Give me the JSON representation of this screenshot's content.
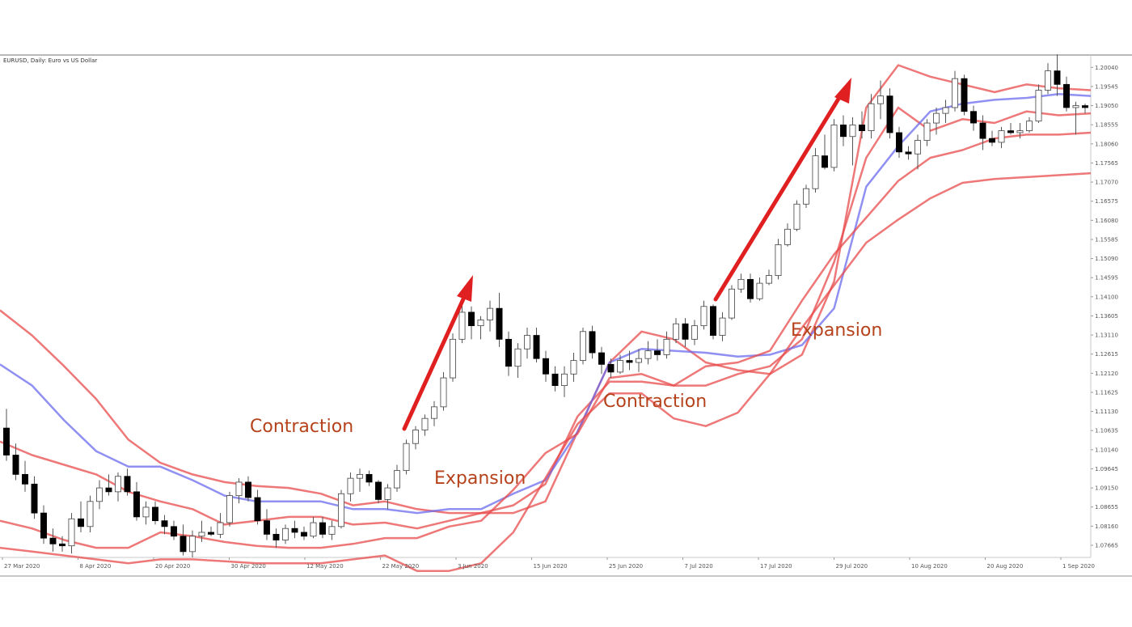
{
  "colors": {
    "outer_band": "#e8494b",
    "middle_band": "#6b6bef",
    "bull_fill": "#ffffff",
    "bear_fill": "#000000",
    "wick": "#555555",
    "arrow": "#e02020",
    "annotation": "#b5421b",
    "frame": "#b9b9b9"
  },
  "chart_data": {
    "type": "candlestick",
    "title": "EURUSD, Daily:  Euro vs US Dollar",
    "x_tick_labels": [
      "27 Mar 2020",
      "8 Apr 2020",
      "20 Apr 2020",
      "30 Apr 2020",
      "12 May 2020",
      "22 May 2020",
      "3 Jun 2020",
      "15 Jun 2020",
      "25 Jun 2020",
      "7 Jul 2020",
      "17 Jul 2020",
      "29 Jul 2020",
      "10 Aug 2020",
      "20 Aug 2020",
      "1 Sep 2020"
    ],
    "y_tick_labels": [
      "1.20040",
      "1.19545",
      "1.19050",
      "1.18555",
      "1.18060",
      "1.17565",
      "1.17070",
      "1.16575",
      "1.16080",
      "1.15585",
      "1.15090",
      "1.14595",
      "1.14100",
      "1.13605",
      "1.13110",
      "1.12615",
      "1.12120",
      "1.11625",
      "1.11130",
      "1.10635",
      "1.10140",
      "1.09645",
      "1.09150",
      "1.08655",
      "1.08160",
      "1.07665"
    ],
    "ylim": [
      1.0735,
      1.2034
    ],
    "grid": false,
    "candles_ohlc": [
      [
        1.107,
        1.112,
        1.0985,
        1.1
      ],
      [
        1.1,
        1.103,
        1.0935,
        1.095
      ],
      [
        1.095,
        1.0985,
        1.0905,
        1.0925
      ],
      [
        1.0925,
        1.0945,
        1.0835,
        1.085
      ],
      [
        1.085,
        1.087,
        1.077,
        1.0785
      ],
      [
        1.0785,
        1.081,
        1.075,
        1.077
      ],
      [
        1.077,
        1.079,
        1.075,
        1.0765
      ],
      [
        1.0765,
        1.085,
        1.0745,
        1.0835
      ],
      [
        1.0835,
        1.088,
        1.08,
        1.0815
      ],
      [
        1.0815,
        1.0895,
        1.08,
        1.088
      ],
      [
        1.088,
        1.0935,
        1.086,
        1.0915
      ],
      [
        1.0915,
        1.095,
        1.0895,
        1.0905
      ],
      [
        1.0905,
        1.0955,
        1.088,
        1.0945
      ],
      [
        1.0945,
        1.0965,
        1.0895,
        1.0905
      ],
      [
        1.0905,
        1.093,
        1.083,
        1.084
      ],
      [
        1.084,
        1.088,
        1.082,
        1.0865
      ],
      [
        1.0865,
        1.088,
        1.082,
        1.083
      ],
      [
        1.083,
        1.0845,
        1.0795,
        1.0815
      ],
      [
        1.0815,
        1.083,
        1.078,
        1.079
      ],
      [
        1.079,
        1.082,
        1.074,
        1.075
      ],
      [
        1.075,
        1.0805,
        1.0735,
        1.079
      ],
      [
        1.079,
        1.083,
        1.0775,
        1.08
      ],
      [
        1.08,
        1.0815,
        1.079,
        1.0795
      ],
      [
        1.0795,
        1.085,
        1.0785,
        1.0825
      ],
      [
        1.0825,
        1.0905,
        1.0815,
        1.0895
      ],
      [
        1.0895,
        1.094,
        1.0875,
        1.093
      ],
      [
        1.093,
        1.0945,
        1.088,
        1.089
      ],
      [
        1.089,
        1.091,
        1.082,
        1.083
      ],
      [
        1.083,
        1.086,
        1.078,
        1.0795
      ],
      [
        1.0795,
        1.081,
        1.076,
        1.078
      ],
      [
        1.078,
        1.082,
        1.077,
        1.081
      ],
      [
        1.081,
        1.083,
        1.0785,
        1.08
      ],
      [
        1.08,
        1.0815,
        1.078,
        1.079
      ],
      [
        1.079,
        1.084,
        1.0785,
        1.0825
      ],
      [
        1.0825,
        1.084,
        1.0785,
        1.0795
      ],
      [
        1.0795,
        1.083,
        1.078,
        1.0815
      ],
      [
        1.0815,
        1.091,
        1.081,
        1.09
      ],
      [
        1.09,
        1.0955,
        1.088,
        1.094
      ],
      [
        1.094,
        1.0965,
        1.0905,
        1.095
      ],
      [
        1.095,
        1.096,
        1.092,
        1.093
      ],
      [
        1.093,
        1.0935,
        1.0875,
        1.0885
      ],
      [
        1.0885,
        1.0925,
        1.086,
        1.0915
      ],
      [
        1.0915,
        1.0975,
        1.0905,
        1.096
      ],
      [
        1.096,
        1.104,
        1.095,
        1.103
      ],
      [
        1.103,
        1.1075,
        1.1015,
        1.1065
      ],
      [
        1.1065,
        1.1105,
        1.105,
        1.1095
      ],
      [
        1.1095,
        1.114,
        1.1075,
        1.1125
      ],
      [
        1.1125,
        1.1215,
        1.1115,
        1.12
      ],
      [
        1.12,
        1.1315,
        1.119,
        1.13
      ],
      [
        1.13,
        1.1395,
        1.129,
        1.137
      ],
      [
        1.137,
        1.1385,
        1.13,
        1.1335
      ],
      [
        1.1335,
        1.136,
        1.13,
        1.135
      ],
      [
        1.135,
        1.14,
        1.132,
        1.138
      ],
      [
        1.138,
        1.142,
        1.128,
        1.13
      ],
      [
        1.13,
        1.132,
        1.1205,
        1.123
      ],
      [
        1.123,
        1.129,
        1.12,
        1.1275
      ],
      [
        1.1275,
        1.133,
        1.125,
        1.131
      ],
      [
        1.131,
        1.133,
        1.124,
        1.125
      ],
      [
        1.125,
        1.127,
        1.119,
        1.121
      ],
      [
        1.121,
        1.123,
        1.1165,
        1.118
      ],
      [
        1.118,
        1.123,
        1.115,
        1.121
      ],
      [
        1.121,
        1.1265,
        1.119,
        1.1245
      ],
      [
        1.1245,
        1.133,
        1.1235,
        1.132
      ],
      [
        1.132,
        1.1335,
        1.125,
        1.1265
      ],
      [
        1.1265,
        1.128,
        1.121,
        1.1235
      ],
      [
        1.1235,
        1.125,
        1.12,
        1.1215
      ],
      [
        1.1215,
        1.126,
        1.121,
        1.1245
      ],
      [
        1.1245,
        1.127,
        1.122,
        1.124
      ],
      [
        1.124,
        1.1275,
        1.1215,
        1.125
      ],
      [
        1.125,
        1.1295,
        1.1235,
        1.127
      ],
      [
        1.127,
        1.13,
        1.1245,
        1.126
      ],
      [
        1.126,
        1.132,
        1.125,
        1.13
      ],
      [
        1.13,
        1.1355,
        1.129,
        1.134
      ],
      [
        1.134,
        1.1355,
        1.128,
        1.13
      ],
      [
        1.13,
        1.135,
        1.1285,
        1.1335
      ],
      [
        1.1335,
        1.14,
        1.1325,
        1.1385
      ],
      [
        1.1385,
        1.139,
        1.13,
        1.131
      ],
      [
        1.131,
        1.137,
        1.1295,
        1.1355
      ],
      [
        1.1355,
        1.144,
        1.135,
        1.143
      ],
      [
        1.143,
        1.147,
        1.142,
        1.1455
      ],
      [
        1.1455,
        1.147,
        1.1395,
        1.1405
      ],
      [
        1.1405,
        1.146,
        1.14,
        1.1445
      ],
      [
        1.1445,
        1.148,
        1.144,
        1.1465
      ],
      [
        1.1465,
        1.156,
        1.1455,
        1.1545
      ],
      [
        1.1545,
        1.16,
        1.154,
        1.1585
      ],
      [
        1.1585,
        1.166,
        1.158,
        1.165
      ],
      [
        1.165,
        1.17,
        1.164,
        1.169
      ],
      [
        1.169,
        1.1795,
        1.168,
        1.1775
      ],
      [
        1.1775,
        1.183,
        1.174,
        1.1745
      ],
      [
        1.1745,
        1.187,
        1.1735,
        1.1855
      ],
      [
        1.1855,
        1.188,
        1.18,
        1.1825
      ],
      [
        1.1825,
        1.1875,
        1.175,
        1.1855
      ],
      [
        1.1855,
        1.189,
        1.182,
        1.184
      ],
      [
        1.184,
        1.1935,
        1.182,
        1.191
      ],
      [
        1.191,
        1.197,
        1.187,
        1.193
      ],
      [
        1.193,
        1.195,
        1.182,
        1.1835
      ],
      [
        1.1835,
        1.185,
        1.177,
        1.1785
      ],
      [
        1.1785,
        1.18,
        1.1765,
        1.178
      ],
      [
        1.178,
        1.183,
        1.174,
        1.1815
      ],
      [
        1.1815,
        1.187,
        1.18,
        1.186
      ],
      [
        1.186,
        1.19,
        1.183,
        1.1885
      ],
      [
        1.1885,
        1.192,
        1.186,
        1.19
      ],
      [
        1.19,
        1.1995,
        1.189,
        1.1975
      ],
      [
        1.1975,
        1.1985,
        1.188,
        1.189
      ],
      [
        1.189,
        1.1905,
        1.184,
        1.186
      ],
      [
        1.186,
        1.188,
        1.179,
        1.182
      ],
      [
        1.182,
        1.184,
        1.18,
        1.181
      ],
      [
        1.181,
        1.185,
        1.1795,
        1.184
      ],
      [
        1.184,
        1.186,
        1.183,
        1.1835
      ],
      [
        1.1835,
        1.186,
        1.182,
        1.184
      ],
      [
        1.184,
        1.1875,
        1.1835,
        1.1865
      ],
      [
        1.1865,
        1.196,
        1.186,
        1.1945
      ],
      [
        1.1945,
        1.2015,
        1.1935,
        1.1995
      ],
      [
        1.1995,
        1.207,
        1.193,
        1.196
      ],
      [
        1.196,
        1.198,
        1.189,
        1.19
      ],
      [
        1.19,
        1.1915,
        1.183,
        1.1905
      ],
      [
        1.1905,
        1.191,
        1.1885,
        1.19
      ]
    ],
    "series": [
      {
        "name": "",
        "role": "upper_outer_band",
        "values": [
          1.1375,
          1.131,
          1.123,
          1.1145,
          1.104,
          1.098,
          1.095,
          1.093,
          1.092,
          1.0915,
          1.09,
          1.087,
          1.088,
          1.086,
          1.085,
          1.085,
          1.085,
          1.088,
          1.106,
          1.124,
          1.132,
          1.13,
          1.124,
          1.122,
          1.121,
          1.126,
          1.145,
          1.19,
          1.201,
          1.198,
          1.196,
          1.194,
          1.196,
          1.195,
          1.1945
        ]
      },
      {
        "name": "",
        "role": "upper_inner_band",
        "values": [
          1.1035,
          1.1,
          1.0975,
          1.095,
          1.0905,
          1.088,
          1.086,
          1.082,
          1.083,
          1.084,
          1.084,
          1.082,
          1.0825,
          1.081,
          1.083,
          1.085,
          1.087,
          1.0925,
          1.11,
          1.119,
          1.119,
          1.118,
          1.118,
          1.121,
          1.123,
          1.13,
          1.15,
          1.177,
          1.19,
          1.184,
          1.187,
          1.186,
          1.189,
          1.188,
          1.1885
        ]
      },
      {
        "name": "",
        "role": "middle_band",
        "values": [
          1.1235,
          1.118,
          1.109,
          1.101,
          1.097,
          1.097,
          1.0935,
          1.0895,
          1.088,
          1.088,
          1.088,
          1.086,
          1.086,
          1.085,
          1.086,
          1.086,
          1.09,
          1.0935,
          1.106,
          1.124,
          1.1275,
          1.127,
          1.1265,
          1.1255,
          1.126,
          1.1285,
          1.138,
          1.1695,
          1.18,
          1.189,
          1.191,
          1.192,
          1.1925,
          1.1935,
          1.193
        ]
      },
      {
        "name": "",
        "role": "lower_inner_band",
        "values": [
          1.083,
          1.081,
          1.078,
          1.076,
          1.076,
          1.08,
          1.079,
          1.0775,
          1.0765,
          1.076,
          1.076,
          1.077,
          1.0785,
          1.0785,
          1.0815,
          1.083,
          1.091,
          1.1005,
          1.1055,
          1.12,
          1.121,
          1.118,
          1.123,
          1.124,
          1.127,
          1.14,
          1.152,
          1.1615,
          1.171,
          1.177,
          1.179,
          1.182,
          1.183,
          1.183,
          1.1835
        ]
      },
      {
        "name": "",
        "role": "lower_outer_band",
        "values": [
          1.076,
          1.075,
          1.074,
          1.073,
          1.072,
          1.073,
          1.073,
          1.0725,
          1.072,
          1.072,
          1.072,
          1.073,
          1.074,
          1.07,
          1.07,
          1.072,
          1.08,
          1.094,
          1.108,
          1.116,
          1.116,
          1.1095,
          1.1075,
          1.111,
          1.121,
          1.133,
          1.144,
          1.155,
          1.161,
          1.1665,
          1.1705,
          1.1715,
          1.172,
          1.1725,
          1.173
        ]
      }
    ],
    "annotations": [
      {
        "text": "Contraction",
        "kind": "label"
      },
      {
        "text": "Expansion",
        "kind": "label"
      },
      {
        "text": "Contraction",
        "kind": "label"
      },
      {
        "text": "Expansion",
        "kind": "label"
      }
    ]
  }
}
